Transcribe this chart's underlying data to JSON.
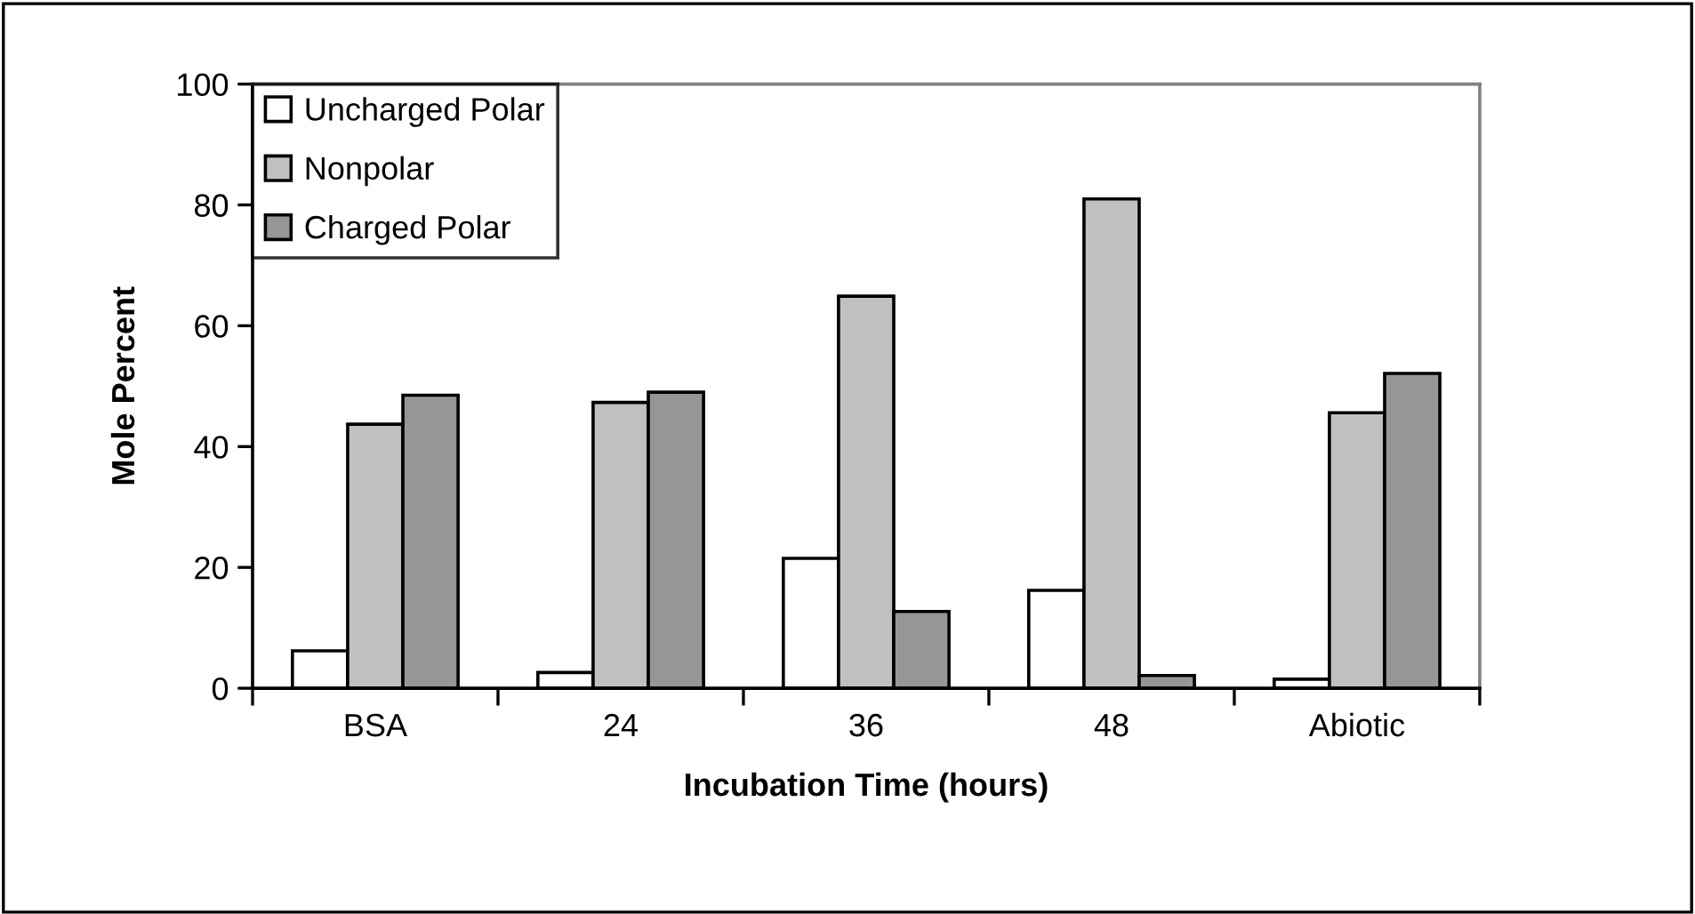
{
  "chart_data": {
    "type": "bar",
    "xlabel": "Incubation Time (hours)",
    "ylabel": "Mole Percent",
    "categories": [
      "BSA",
      "24",
      "36",
      "48",
      "Abiotic"
    ],
    "series": [
      {
        "name": "Uncharged Polar",
        "color": "#ffffff",
        "values": [
          6.2,
          2.6,
          21.5,
          16.2,
          1.5
        ]
      },
      {
        "name": "Nonpolar",
        "color": "#c0c0c0",
        "values": [
          43.7,
          47.3,
          64.9,
          81.0,
          45.6
        ]
      },
      {
        "name": "Charged Polar",
        "color": "#969696",
        "values": [
          48.5,
          49.0,
          12.7,
          2.1,
          52.1
        ]
      }
    ],
    "ylim": [
      0,
      100
    ],
    "yticks": [
      0,
      20,
      40,
      60,
      80,
      100
    ],
    "grid": false,
    "legend": "top left"
  }
}
